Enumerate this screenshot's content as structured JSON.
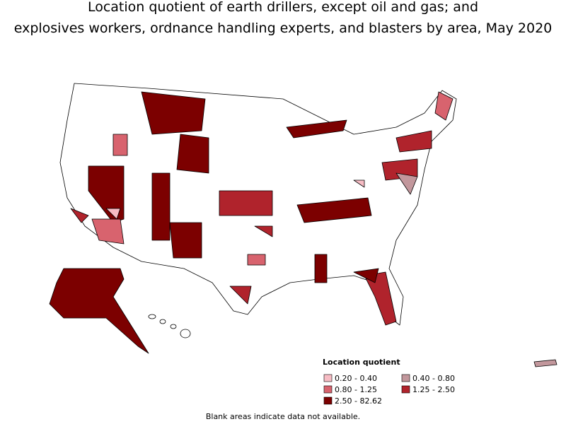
{
  "title": [
    "Location quotient of earth drillers, except oil and gas; and",
    "explosives workers, ordnance handling experts, and blasters by area, May 2020"
  ],
  "legend": {
    "title": "Location quotient",
    "items": [
      {
        "label": "0.20 - 0.40",
        "color": "#f7bcc4"
      },
      {
        "label": "0.40 - 0.80",
        "color": "#c2979c"
      },
      {
        "label": "0.80 - 1.25",
        "color": "#d8636e"
      },
      {
        "label": "1.25 - 2.50",
        "color": "#b0232c"
      },
      {
        "label": "2.50 - 82.62",
        "color": "#7c0000"
      }
    ]
  },
  "note": "Blank areas indicate data not available."
}
